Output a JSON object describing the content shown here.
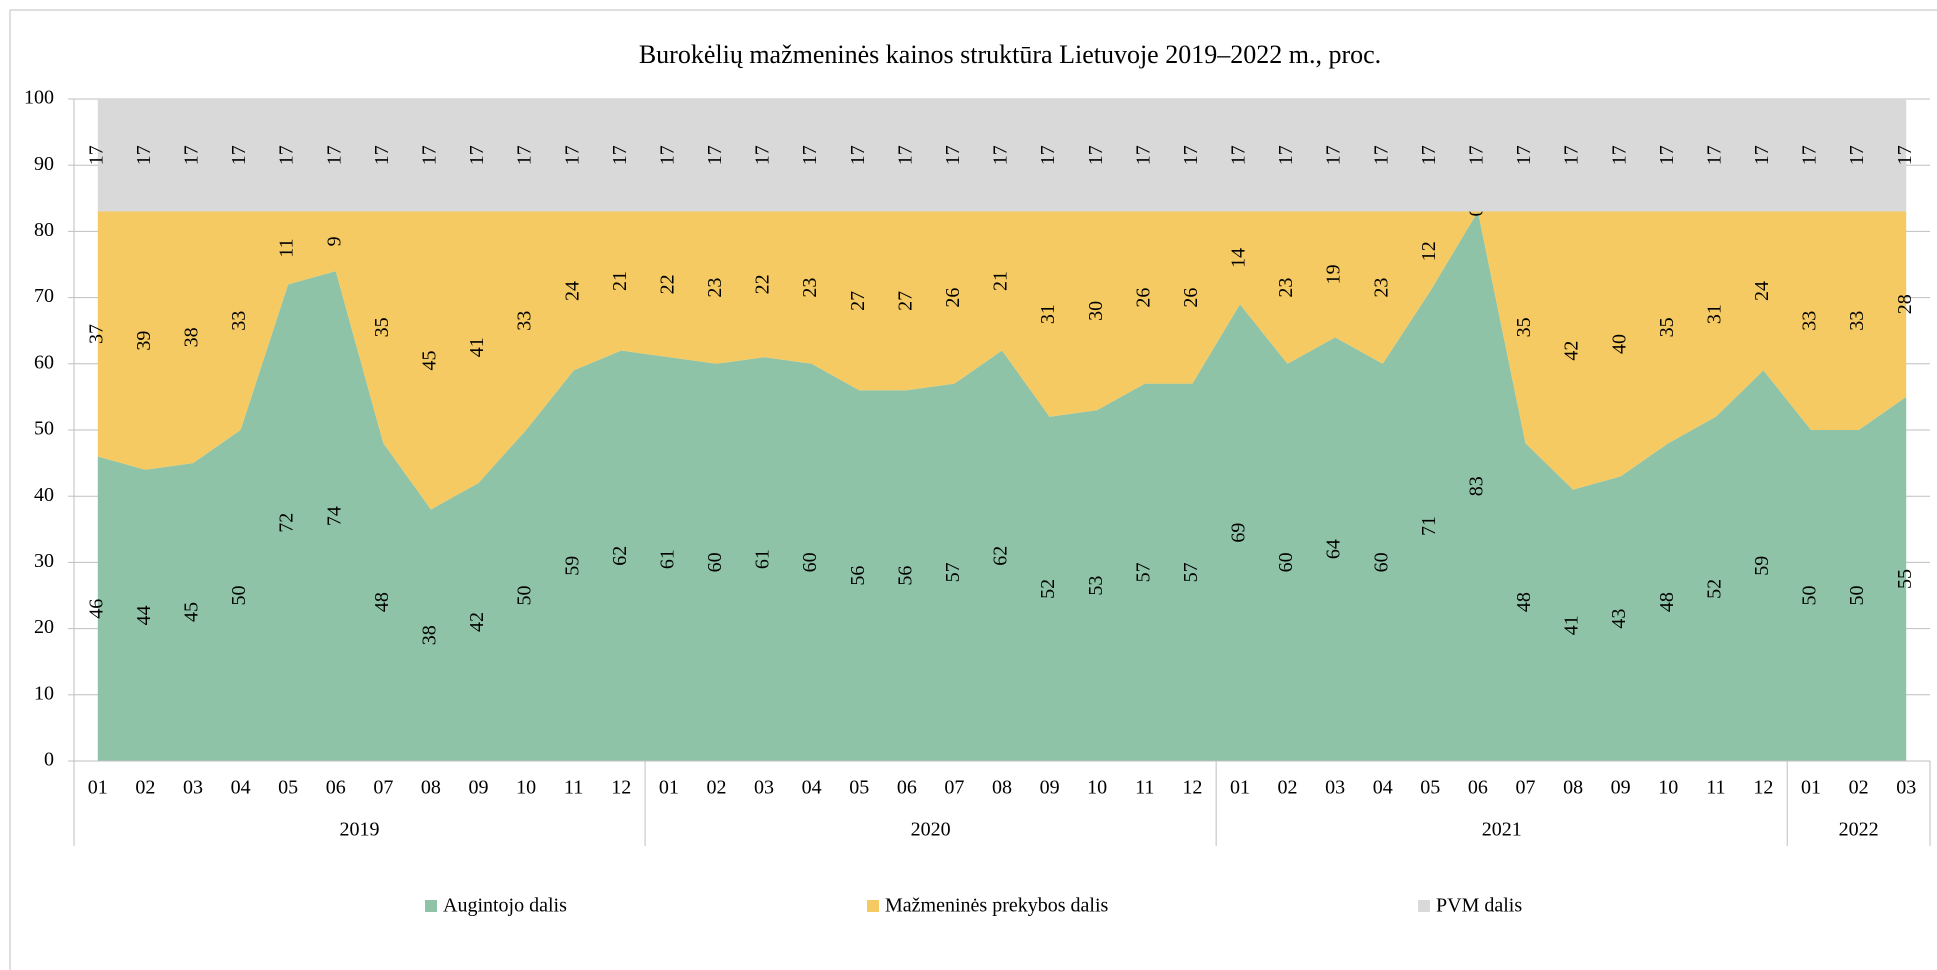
{
  "chart_data": {
    "type": "stacked_area",
    "title": "Burokėlių mažmeninės kainos struktūra Lietuvoje 2019–2022 m., proc.",
    "categories": [
      "01",
      "02",
      "03",
      "04",
      "05",
      "06",
      "07",
      "08",
      "09",
      "10",
      "11",
      "12",
      "01",
      "02",
      "03",
      "04",
      "05",
      "06",
      "07",
      "08",
      "09",
      "10",
      "11",
      "12",
      "01",
      "02",
      "03",
      "04",
      "05",
      "06",
      "07",
      "08",
      "09",
      "10",
      "11",
      "12",
      "01",
      "02",
      "03"
    ],
    "years": [
      "2019",
      "2020",
      "2021",
      "2022"
    ],
    "series": [
      {
        "name": "Augintojo dalis",
        "color": "#8fc3a7",
        "values": [
          46,
          44,
          45,
          50,
          72,
          74,
          48,
          38,
          42,
          50,
          59,
          62,
          61,
          60,
          61,
          60,
          56,
          56,
          57,
          62,
          52,
          53,
          57,
          57,
          69,
          60,
          64,
          60,
          71,
          83,
          48,
          41,
          43,
          48,
          52,
          59,
          50,
          50,
          55
        ]
      },
      {
        "name": "Mažmeninės prekybos dalis",
        "color": "#f5ca63",
        "values": [
          37,
          39,
          38,
          33,
          11,
          9,
          35,
          45,
          41,
          33,
          24,
          21,
          22,
          23,
          22,
          23,
          27,
          27,
          26,
          21,
          31,
          30,
          26,
          26,
          14,
          23,
          19,
          23,
          12,
          0,
          35,
          42,
          40,
          35,
          31,
          24,
          33,
          33,
          28
        ]
      },
      {
        "name": "PVM dalis",
        "color": "#d9d9d9",
        "values": [
          17,
          17,
          17,
          17,
          17,
          17,
          17,
          17,
          17,
          17,
          17,
          17,
          17,
          17,
          17,
          17,
          17,
          17,
          17,
          17,
          17,
          17,
          17,
          17,
          17,
          17,
          17,
          17,
          17,
          17,
          17,
          17,
          17,
          17,
          17,
          17,
          17,
          17,
          17
        ]
      }
    ],
    "ylim": [
      0,
      100
    ],
    "yticks": [
      0,
      10,
      20,
      30,
      40,
      50,
      60,
      70,
      80,
      90,
      100
    ],
    "grid": true,
    "legend": "bottom"
  }
}
